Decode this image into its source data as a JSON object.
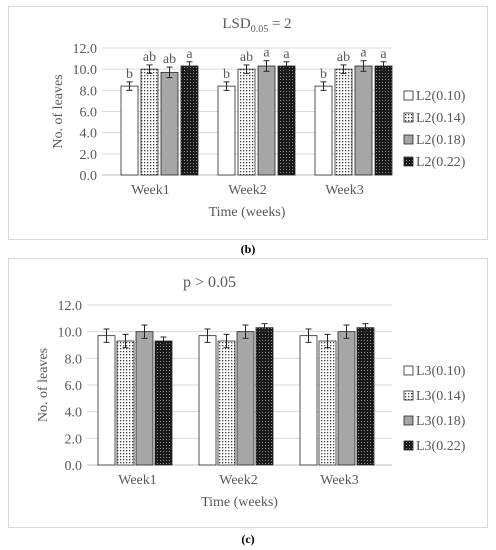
{
  "labels": {
    "b": "(b)",
    "c": "(c)"
  },
  "chart_data": [
    {
      "type": "bar",
      "title": "LSD",
      "title_sub": "0.05",
      "title_suffix": " = 2",
      "xlabel": "Time (weeks)",
      "ylabel": "No. of leaves",
      "categories": [
        "Week1",
        "Week2",
        "Week3"
      ],
      "ylim": [
        0,
        12
      ],
      "yticks": [
        "0.0",
        "2.0",
        "4.0",
        "6.0",
        "8.0",
        "10.0",
        "12.0"
      ],
      "grid": true,
      "legend_position": "right",
      "series": [
        {
          "name": "L2(0.10)",
          "pattern": "white",
          "values": [
            8.4,
            8.4,
            8.4
          ],
          "errors": [
            0.4,
            0.4,
            0.4
          ],
          "letters": [
            "b",
            "b",
            "b"
          ]
        },
        {
          "name": "L2(0.14)",
          "pattern": "dots",
          "values": [
            10.0,
            10.0,
            10.0
          ],
          "errors": [
            0.4,
            0.4,
            0.4
          ],
          "letters": [
            "ab",
            "ab",
            "ab"
          ]
        },
        {
          "name": "L2(0.18)",
          "pattern": "gray",
          "values": [
            9.7,
            10.3,
            10.3
          ],
          "errors": [
            0.5,
            0.5,
            0.5
          ],
          "letters": [
            "ab",
            "a",
            "a"
          ]
        },
        {
          "name": "L2(0.22)",
          "pattern": "dark",
          "values": [
            10.3,
            10.3,
            10.3
          ],
          "errors": [
            0.4,
            0.4,
            0.4
          ],
          "letters": [
            "a",
            "a",
            "a"
          ]
        }
      ]
    },
    {
      "type": "bar",
      "title": "p > 0.05",
      "xlabel": "Time (weeks)",
      "ylabel": "No. of leaves",
      "categories": [
        "Week1",
        "Week2",
        "Week3"
      ],
      "ylim": [
        0,
        12
      ],
      "yticks": [
        "0.0",
        "2.0",
        "4.0",
        "6.0",
        "8.0",
        "10.0",
        "12.0"
      ],
      "grid": true,
      "legend_position": "right",
      "series": [
        {
          "name": "L3(0.10)",
          "pattern": "white",
          "values": [
            9.7,
            9.7,
            9.7
          ],
          "errors": [
            0.5,
            0.5,
            0.5
          ]
        },
        {
          "name": "L3(0.14)",
          "pattern": "dots",
          "values": [
            9.3,
            9.3,
            9.3
          ],
          "errors": [
            0.5,
            0.5,
            0.5
          ]
        },
        {
          "name": "L3(0.18)",
          "pattern": "gray",
          "values": [
            10.0,
            10.0,
            10.0
          ],
          "errors": [
            0.5,
            0.5,
            0.5
          ]
        },
        {
          "name": "L3(0.22)",
          "pattern": "dark",
          "values": [
            9.3,
            10.3,
            10.3
          ],
          "errors": [
            0.3,
            0.3,
            0.3
          ]
        }
      ]
    }
  ],
  "colors": {
    "axis": "#bfbfbf",
    "grid": "#d9d9d9",
    "text": "#595959",
    "gray_fill": "#a6a6a6",
    "dark_fill": "#262626"
  }
}
